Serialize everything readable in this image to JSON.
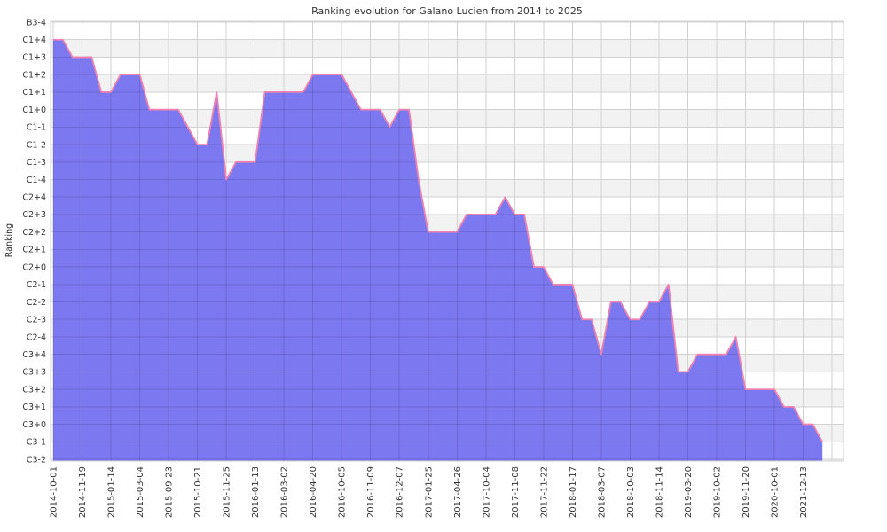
{
  "colors": {
    "background": "#ffffff",
    "band_gray": "#f2f2f2",
    "grid_base": "#d2d2d2",
    "grid_overlay_on_fill": "rgba(20,16,70,0.15)",
    "area_fill": "#7c78ef",
    "line_pink": "#ef82b0",
    "text": "#333333"
  },
  "chart_data": {
    "type": "area",
    "title": "Ranking evolution for Galano Lucien from 2014 to 2025",
    "ylabel": "Ranking",
    "legend": "none",
    "grid": "on",
    "background_bands": "alternating horizontal gray/white stripes",
    "y_categories_top_to_bottom": [
      "B3-4",
      "C1+4",
      "C1+3",
      "C1+2",
      "C1+1",
      "C1+0",
      "C1-1",
      "C1-2",
      "C1-3",
      "C1-4",
      "C2+4",
      "C2+3",
      "C2+2",
      "C2+1",
      "C2+0",
      "C2-1",
      "C2-2",
      "C2-3",
      "C2-4",
      "C3+4",
      "C3+3",
      "C3+2",
      "C3+1",
      "C3+0",
      "C3-1",
      "C3-2"
    ],
    "x_tick_labels": [
      "2014-10-01",
      "2014-11-19",
      "2015-01-14",
      "2015-03-04",
      "2015-09-23",
      "2015-10-21",
      "2015-11-25",
      "2016-01-13",
      "2016-03-02",
      "2016-04-20",
      "2016-10-05",
      "2016-11-09",
      "2016-12-07",
      "2017-01-25",
      "2017-04-26",
      "2017-10-04",
      "2017-11-08",
      "2017-11-22",
      "2018-01-17",
      "2018-03-07",
      "2018-10-03",
      "2018-11-14",
      "2019-03-20",
      "2019-10-02",
      "2019-11-20",
      "2020-10-01",
      "2021-12-13"
    ],
    "x_tick_every_n_points": 3,
    "points_level_index": [
      1,
      1,
      2,
      2,
      2,
      4,
      4,
      3,
      3,
      3,
      5,
      5,
      5,
      5,
      6,
      7,
      7,
      4,
      9,
      8,
      8,
      8,
      4,
      4,
      4,
      4,
      4,
      3,
      3,
      3,
      3,
      4,
      5,
      5,
      5,
      6,
      5,
      5,
      9,
      12,
      12,
      12,
      12,
      11,
      11,
      11,
      11,
      10,
      11,
      11,
      14,
      14,
      15,
      15,
      15,
      17,
      17,
      19,
      16,
      16,
      17,
      17,
      16,
      16,
      15,
      20,
      20,
      19,
      19,
      19,
      19,
      18,
      21,
      21,
      21,
      21,
      22,
      22,
      23,
      23,
      24
    ]
  }
}
